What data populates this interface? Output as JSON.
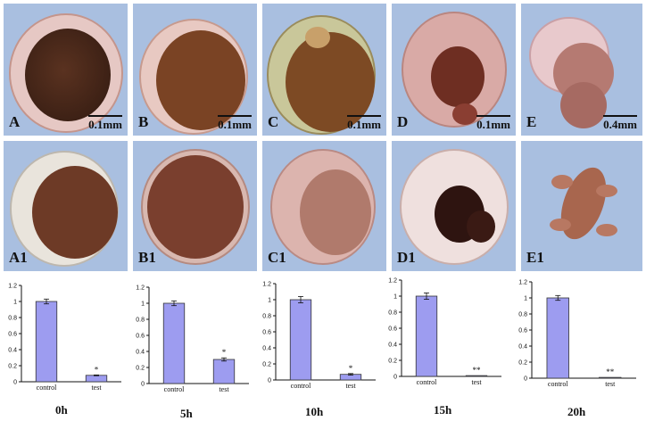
{
  "panels_top": [
    {
      "label": "A",
      "scale": "0.1mm"
    },
    {
      "label": "B",
      "scale": "0.1mm"
    },
    {
      "label": "C",
      "scale": "0.1mm"
    },
    {
      "label": "D",
      "scale": "0.1mm"
    },
    {
      "label": "E",
      "scale": "0.4mm"
    }
  ],
  "panels_bottom": [
    {
      "label": "A1"
    },
    {
      "label": "B1"
    },
    {
      "label": "C1"
    },
    {
      "label": "D1"
    },
    {
      "label": "E1"
    }
  ],
  "colors": {
    "panel_bg": "#a9bfe0",
    "bar_fill": "#9d9cf0",
    "bar_stroke": "#333333"
  },
  "chart_data": [
    {
      "type": "bar",
      "title": "0h",
      "categories": [
        "control",
        "test"
      ],
      "values": [
        1.0,
        0.08
      ],
      "errors": [
        0.03,
        0.005
      ],
      "sig": [
        "",
        "*"
      ],
      "ylim": [
        0,
        1.2
      ],
      "yticks": [
        "0",
        "0.2",
        "0.4",
        "0.6",
        "0.8",
        "1",
        "1.2"
      ]
    },
    {
      "type": "bar",
      "title": "5h",
      "categories": [
        "control",
        "test"
      ],
      "values": [
        1.0,
        0.3
      ],
      "errors": [
        0.03,
        0.02
      ],
      "sig": [
        "",
        "*"
      ],
      "ylim": [
        0,
        1.2
      ],
      "yticks": [
        "0",
        "0.2",
        "0.4",
        "0.6",
        "0.8",
        "1",
        "1.2"
      ]
    },
    {
      "type": "bar",
      "title": "10h",
      "categories": [
        "control",
        "test"
      ],
      "values": [
        1.0,
        0.07
      ],
      "errors": [
        0.04,
        0.01
      ],
      "sig": [
        "",
        "*"
      ],
      "ylim": [
        0,
        1.2
      ],
      "yticks": [
        "0",
        "0.2",
        "0.4",
        "0.6",
        "0.8",
        "1",
        "1.2"
      ]
    },
    {
      "type": "bar",
      "title": "15h",
      "categories": [
        "control",
        "test"
      ],
      "values": [
        1.0,
        0.01
      ],
      "errors": [
        0.04,
        0.003
      ],
      "sig": [
        "",
        "**"
      ],
      "ylim": [
        0,
        1.2
      ],
      "yticks": [
        "0",
        "0.2",
        "0.4",
        "0.6",
        "0.8",
        "1",
        "1.2"
      ]
    },
    {
      "type": "bar",
      "title": "20h",
      "categories": [
        "control",
        "test"
      ],
      "values": [
        1.0,
        0.01
      ],
      "errors": [
        0.03,
        0.003
      ],
      "sig": [
        "",
        "**"
      ],
      "ylim": [
        0,
        1.2
      ],
      "yticks": [
        "0",
        "0.2",
        "0.4",
        "0.6",
        "0.8",
        "1",
        "1.2"
      ]
    }
  ]
}
